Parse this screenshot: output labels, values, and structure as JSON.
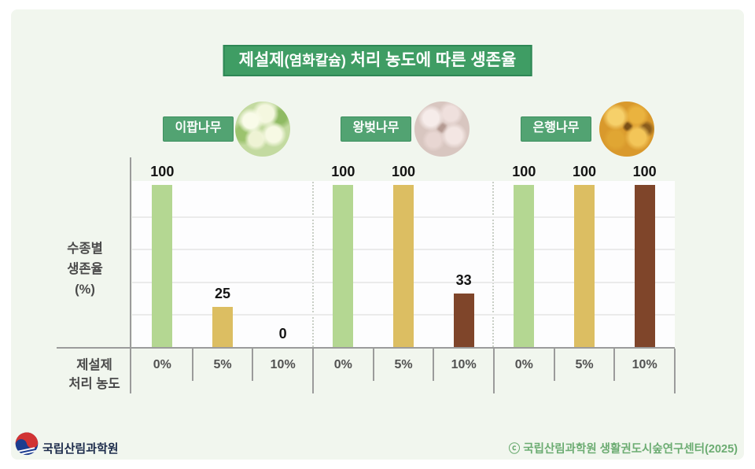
{
  "title": {
    "prefix": "제설제",
    "paren": "(염화칼슘)",
    "rest": " 처리 농도에 따른 생존율"
  },
  "colors": {
    "banner_green": "#3f9d64",
    "badge_green": "#52a372",
    "bar_0pct": "#b4d792",
    "bar_5pct": "#dcbe62",
    "bar_10pct": "#7f452a",
    "copyright_green": "#6cac72"
  },
  "axis": {
    "y_caption_lines": [
      "수종별",
      "생존율",
      "(%)"
    ],
    "x_caption_lines": [
      "제설제",
      "처리 농도"
    ]
  },
  "chart_data": {
    "type": "bar",
    "title": "제설제(염화칼슘) 처리 농도에 따른 생존율",
    "categories": [
      "0%",
      "5%",
      "10%"
    ],
    "series": [
      {
        "name": "이팝나무",
        "values": [
          100,
          25,
          0
        ]
      },
      {
        "name": "왕벚나무",
        "values": [
          100,
          100,
          33
        ]
      },
      {
        "name": "은행나무",
        "values": [
          100,
          100,
          100
        ]
      }
    ],
    "ylabel": "수종별 생존율 (%)",
    "xlabel": "제설제 처리 농도",
    "ylim": [
      0,
      100
    ],
    "grid": true,
    "gridlines_y": [
      20,
      40,
      60,
      80
    ],
    "bar_colors": [
      "#b4d792",
      "#dcbe62",
      "#7f452a"
    ],
    "legend_position": "none"
  },
  "footer": {
    "org": "국립산림과학원",
    "copyright": "ⓒ 국립산림과학원 생활권도시숲연구센터(2025)"
  }
}
